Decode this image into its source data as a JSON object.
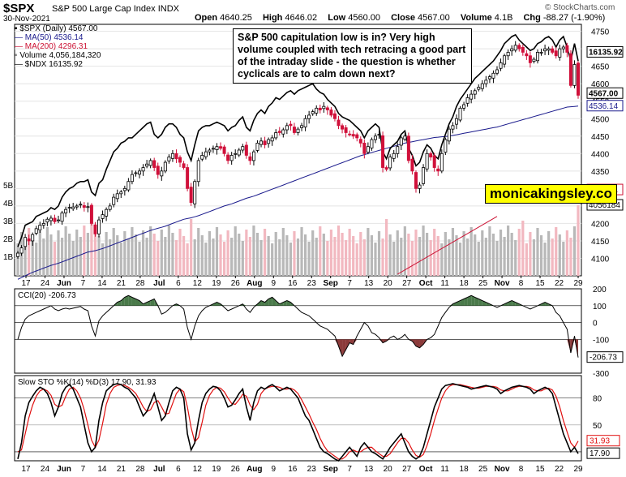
{
  "header": {
    "symbol": "$SPX",
    "name": "S&P 500 Large Cap Index",
    "exchange": "INDX",
    "date": "30-Nov-2021",
    "open_label": "Open",
    "open": "4640.25",
    "high_label": "High",
    "high": "4646.02",
    "low_label": "Low",
    "low": "4560.00",
    "close_label": "Close",
    "close": "4567.00",
    "volume_label": "Volume",
    "volume": "4.1B",
    "chg_label": "Chg",
    "chg": "-88.27 (-1.90%)",
    "source": "© StockCharts.com"
  },
  "legend": {
    "spx": "$SPX (Daily) 4567.00",
    "ma50": "MA(50) 4536.14",
    "ma200": "MA(200) 4296.31",
    "volume": "Volume 4,056,184,320",
    "ndx": "$NDX 16135.92"
  },
  "annotation": "S&P 500 capitulation low is in? Very high volume coupled with tech retracing a good part of the intraday slide - the question is whether cyclicals are to calm down next?",
  "brand": "monicakingsley.co",
  "colors": {
    "up": "#000000",
    "down": "#d0103a",
    "ma50": "#1a1a8c",
    "ma200": "#cc1133",
    "ndx": "#000000",
    "cci_fill": "#4a7a4a",
    "cci_neg": "#8b3a3a",
    "vol_up": "#b8b8b8",
    "vol_down": "#f2b8c0",
    "k": "#000000",
    "d": "#e01010"
  },
  "chart_data": [
    {
      "type": "candlestick",
      "panel": "price",
      "ylim": [
        4050,
        4770
      ],
      "yticks": [
        4100,
        4150,
        4200,
        4250,
        4300,
        4350,
        4400,
        4450,
        4500,
        4550,
        4600,
        4650,
        4700,
        4750
      ],
      "x_labels": [
        "17",
        "24",
        "Jun",
        "7",
        "14",
        "21",
        "28",
        "Jul",
        "6",
        "12",
        "19",
        "26",
        "Aug",
        "9",
        "16",
        "23",
        "Sep",
        "7",
        "13",
        "20",
        "27",
        "Oct",
        "11",
        "18",
        "25",
        "Nov",
        "8",
        "15",
        "22",
        "29"
      ],
      "last_labels": {
        "ndx": "16135.92",
        "close": "4567.00",
        "ma50": "4536.14",
        "ma200": "4296.31",
        "volume": "4056184"
      },
      "volume_axis": [
        "1B",
        "2B",
        "3B",
        "4B",
        "5B"
      ],
      "series": {
        "close": [
          4115,
          4130,
          4160,
          4150,
          4168,
          4185,
          4195,
          4200,
          4212,
          4215,
          4205,
          4210,
          4230,
          4240,
          4246,
          4247,
          4250,
          4255,
          4246,
          4248,
          4200,
          4170,
          4210,
          4225,
          4240,
          4250,
          4275,
          4285,
          4290,
          4300,
          4320,
          4340,
          4345,
          4350,
          4360,
          4370,
          4380,
          4360,
          4340,
          4350,
          4375,
          4390,
          4400,
          4385,
          4375,
          4360,
          4300,
          4260,
          4320,
          4380,
          4395,
          4405,
          4410,
          4415,
          4420,
          4415,
          4400,
          4380,
          4395,
          4400,
          4410,
          4420,
          4395,
          4380,
          4405,
          4430,
          4436,
          4425,
          4440,
          4445,
          4460,
          4460,
          4468,
          4480,
          4480,
          4460,
          4470,
          4480,
          4500,
          4510,
          4520,
          4530,
          4525,
          4535,
          4525,
          4510,
          4500,
          4480,
          4470,
          4460,
          4455,
          4450,
          4445,
          4430,
          4400,
          4420,
          4440,
          4450,
          4455,
          4360,
          4355,
          4390,
          4400,
          4420,
          4445,
          4450,
          4380,
          4350,
          4300,
          4310,
          4360,
          4400,
          4390,
          4360,
          4350,
          4400,
          4440,
          4470,
          4480,
          4500,
          4530,
          4540,
          4560,
          4570,
          4580,
          4590,
          4600,
          4610,
          4620,
          4630,
          4640,
          4660,
          4680,
          4690,
          4700,
          4710,
          4700,
          4690,
          4680,
          4660,
          4670,
          4690,
          4690,
          4700,
          4700,
          4690,
          4680,
          4700,
          4705,
          4690,
          4595,
          4655,
          4567
        ],
        "ndx": [
          4108,
          4135,
          4170,
          4175,
          4180,
          4195,
          4200,
          4205,
          4210,
          4220,
          4215,
          4225,
          4250,
          4265,
          4275,
          4280,
          4290,
          4295,
          4295,
          4300,
          4265,
          4255,
          4290,
          4300,
          4330,
          4355,
          4380,
          4390,
          4405,
          4410,
          4420,
          4420,
          4430,
          4440,
          4450,
          4460,
          4465,
          4430,
          4420,
          4430,
          4450,
          4460,
          4460,
          4450,
          4430,
          4420,
          4380,
          4355,
          4400,
          4440,
          4450,
          4455,
          4455,
          4460,
          4465,
          4460,
          4455,
          4440,
          4450,
          4455,
          4470,
          4480,
          4450,
          4440,
          4470,
          4490,
          4500,
          4490,
          4510,
          4520,
          4535,
          4530,
          4540,
          4550,
          4555,
          4545,
          4555,
          4560,
          4565,
          4570,
          4575,
          4560,
          4550,
          4545,
          4530,
          4520,
          4510,
          4490,
          4480,
          4475,
          4470,
          4460,
          4450,
          4440,
          4420,
          4440,
          4450,
          4460,
          4450,
          4380,
          4360,
          4390,
          4400,
          4410,
          4430,
          4440,
          4390,
          4370,
          4340,
          4350,
          4380,
          4400,
          4390,
          4370,
          4360,
          4400,
          4430,
          4460,
          4480,
          4510,
          4530,
          4545,
          4560,
          4575,
          4590,
          4600,
          4610,
          4620,
          4630,
          4640,
          4655,
          4670,
          4690,
          4700,
          4710,
          4715,
          4700,
          4690,
          4680,
          4670,
          4675,
          4690,
          4695,
          4705,
          4710,
          4700,
          4680,
          4700,
          4710,
          4680,
          4640,
          4690,
          4640
        ],
        "ma50": [
          4040,
          4045,
          4050,
          4055,
          4060,
          4064,
          4068,
          4072,
          4076,
          4080,
          4083,
          4086,
          4090,
          4094,
          4098,
          4102,
          4106,
          4110,
          4114,
          4118,
          4120,
          4122,
          4125,
          4128,
          4132,
          4136,
          4140,
          4144,
          4148,
          4152,
          4156,
          4160,
          4164,
          4168,
          4172,
          4176,
          4180,
          4183,
          4186,
          4189,
          4192,
          4196,
          4200,
          4204,
          4208,
          4212,
          4214,
          4216,
          4219,
          4222,
          4226,
          4230,
          4234,
          4238,
          4242,
          4246,
          4250,
          4253,
          4256,
          4260,
          4264,
          4268,
          4272,
          4275,
          4278,
          4282,
          4286,
          4290,
          4294,
          4298,
          4302,
          4306,
          4310,
          4314,
          4318,
          4322,
          4326,
          4330,
          4334,
          4338,
          4342,
          4346,
          4350,
          4354,
          4358,
          4362,
          4366,
          4370,
          4374,
          4378,
          4382,
          4386,
          4390,
          4394,
          4397,
          4400,
          4403,
          4406,
          4409,
          4412,
          4415,
          4418,
          4421,
          4424,
          4427,
          4430,
          4432,
          4434,
          4436,
          4438,
          4440,
          4442,
          4444,
          4446,
          4447,
          4448,
          4449,
          4450,
          4452,
          4454,
          4456,
          4458,
          4460,
          4462,
          4464,
          4466,
          4468,
          4470,
          4472,
          4474,
          4476,
          4479,
          4482,
          4485,
          4488,
          4491,
          4494,
          4497,
          4500,
          4503,
          4506,
          4509,
          4512,
          4515,
          4518,
          4521,
          4524,
          4527,
          4530,
          4533,
          4534,
          4535,
          4536
        ]
      }
    },
    {
      "type": "line",
      "panel": "cci",
      "title": "CCI(20) -206.73",
      "last_label": "-206.73",
      "ylim": [
        -300,
        200
      ],
      "yticks": [
        -300,
        -200,
        -100,
        0,
        100,
        200
      ],
      "values": [
        -100,
        -30,
        20,
        40,
        50,
        60,
        70,
        80,
        90,
        100,
        80,
        70,
        80,
        85,
        80,
        85,
        90,
        95,
        80,
        70,
        -20,
        -80,
        10,
        40,
        60,
        80,
        100,
        120,
        130,
        150,
        160,
        150,
        140,
        130,
        110,
        120,
        130,
        140,
        100,
        50,
        60,
        80,
        100,
        110,
        100,
        80,
        -30,
        -100,
        -20,
        40,
        70,
        90,
        100,
        110,
        120,
        110,
        90,
        70,
        80,
        90,
        100,
        110,
        80,
        60,
        90,
        110,
        130,
        120,
        140,
        150,
        130,
        110,
        120,
        130,
        120,
        100,
        80,
        60,
        50,
        40,
        20,
        0,
        -20,
        -30,
        -40,
        -60,
        -80,
        -140,
        -200,
        -160,
        -120,
        -130,
        -80,
        -40,
        0,
        -20,
        -60,
        -70,
        -90,
        -120,
        -110,
        -90,
        -80,
        -100,
        -90,
        -70,
        -100,
        -110,
        -140,
        -150,
        -130,
        -100,
        -90,
        -70,
        -20,
        30,
        60,
        90,
        110,
        120,
        130,
        140,
        150,
        160,
        150,
        140,
        130,
        120,
        110,
        100,
        90,
        100,
        110,
        120,
        130,
        120,
        110,
        100,
        90,
        80,
        90,
        100,
        110,
        120,
        110,
        100,
        60,
        40,
        0,
        -40,
        -180,
        -80,
        -207
      ],
      "levels": [
        100,
        0,
        -100
      ]
    },
    {
      "type": "line",
      "panel": "stochastic",
      "title": "Slow STO %K(14) %D(3) 17.90, 31.93",
      "k_label": "17.90",
      "d_label": "31.93",
      "ylim": [
        10,
        105
      ],
      "yticks": [
        20,
        50,
        80
      ],
      "series": [
        {
          "name": "%K",
          "values": [
            12,
            30,
            60,
            75,
            82,
            88,
            92,
            90,
            85,
            75,
            60,
            70,
            85,
            92,
            95,
            90,
            80,
            70,
            50,
            30,
            20,
            25,
            55,
            75,
            88,
            92,
            95,
            96,
            95,
            92,
            90,
            85,
            80,
            70,
            60,
            65,
            75,
            85,
            70,
            55,
            60,
            75,
            88,
            92,
            90,
            80,
            40,
            22,
            30,
            55,
            75,
            85,
            90,
            93,
            92,
            88,
            80,
            70,
            72,
            78,
            85,
            90,
            70,
            55,
            75,
            88,
            92,
            90,
            93,
            95,
            92,
            88,
            90,
            92,
            90,
            85,
            80,
            70,
            60,
            55,
            45,
            35,
            25,
            20,
            18,
            15,
            12,
            10,
            15,
            20,
            25,
            20,
            15,
            25,
            30,
            25,
            20,
            18,
            15,
            12,
            18,
            25,
            30,
            35,
            40,
            30,
            20,
            15,
            12,
            15,
            25,
            40,
            55,
            70,
            80,
            90,
            94,
            95,
            96,
            95,
            94,
            93,
            92,
            90,
            91,
            92,
            93,
            94,
            93,
            92,
            90,
            85,
            88,
            90,
            92,
            93,
            94,
            93,
            92,
            90,
            85,
            88,
            90,
            92,
            90,
            85,
            70,
            55,
            40,
            30,
            20,
            25,
            18
          ]
        },
        {
          "name": "%D",
          "values": [
            20,
            22,
            40,
            58,
            72,
            82,
            88,
            90,
            88,
            83,
            73,
            70,
            72,
            82,
            90,
            92,
            88,
            80,
            67,
            50,
            33,
            25,
            33,
            52,
            73,
            85,
            92,
            94,
            95,
            94,
            92,
            89,
            85,
            78,
            70,
            65,
            67,
            75,
            77,
            70,
            62,
            63,
            74,
            85,
            90,
            87,
            70,
            47,
            31,
            36,
            53,
            72,
            83,
            89,
            92,
            91,
            87,
            80,
            74,
            73,
            78,
            84,
            82,
            72,
            67,
            73,
            85,
            90,
            92,
            93,
            93,
            92,
            90,
            90,
            91,
            89,
            85,
            78,
            70,
            62,
            53,
            45,
            35,
            27,
            21,
            18,
            15,
            12,
            12,
            15,
            20,
            22,
            20,
            20,
            23,
            25,
            25,
            21,
            18,
            15,
            15,
            18,
            24,
            30,
            35,
            35,
            30,
            22,
            16,
            14,
            17,
            27,
            40,
            55,
            68,
            80,
            88,
            93,
            95,
            95,
            95,
            94,
            93,
            92,
            91,
            91,
            92,
            93,
            93,
            93,
            92,
            89,
            88,
            88,
            90,
            92,
            93,
            93,
            93,
            92,
            89,
            88,
            88,
            90,
            91,
            89,
            82,
            70,
            55,
            42,
            30,
            25,
            32
          ]
        }
      ]
    }
  ]
}
